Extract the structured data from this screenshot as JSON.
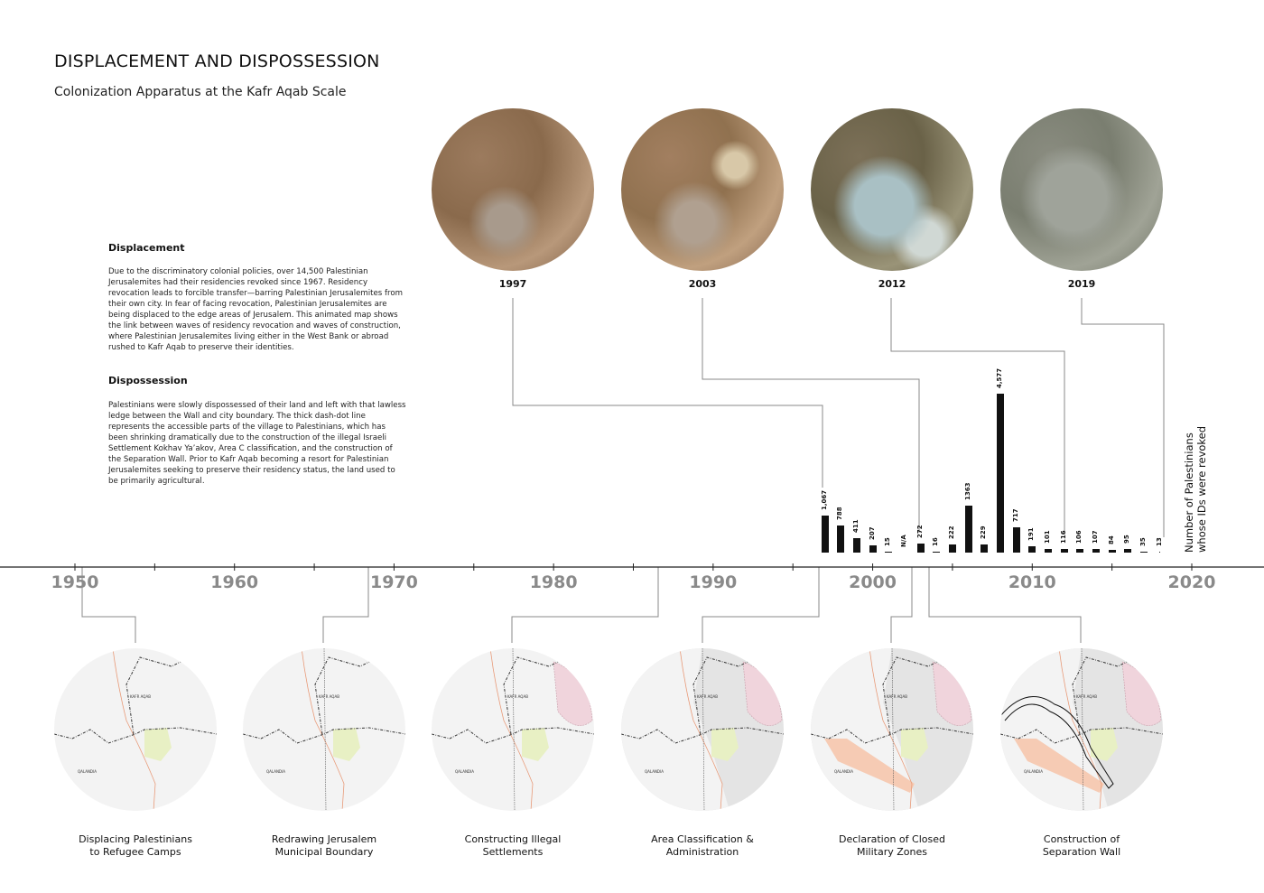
{
  "header": {
    "title": "DISPLACEMENT AND DISPOSSESSION",
    "subtitle": "Colonization Apparatus at the Kafr Aqab Scale"
  },
  "sections": [
    {
      "heading": "Displacement",
      "body": "Due to the discriminatory colonial policies, over 14,500 Palestinian Jerusalemites had their residencies revoked since 1967. Residency revocation leads to forcible transfer—barring Palestinian Jerusalemites from their own city. In fear of facing revocation, Palestinian Jerusalemites are being displaced to the edge areas of Jerusalem. This animated map shows the link between waves of residency revocation and waves of construction, where Palestinian Jerusalemites living either in the West Bank or abroad rushed to Kafr Aqab to preserve their identities."
    },
    {
      "heading": "Dispossession",
      "body": "Palestinians were slowly dispossessed of their land and left with that lawless ledge between the Wall and city boundary. The thick dash-dot line represents the accessible parts of the village to Palestinians, which has been shrinking dramatically due to the construction of the illegal Israeli Settlement Kokhav Ya’akov, Area C classification, and the construction of the Separation Wall. Prior to Kafr Aqab becoming a resort for Palestinian Jerusalemites seeking to preserve their residency status, the land used to be primarily agricultural."
    }
  ],
  "satellite_images": [
    {
      "year": "1997"
    },
    {
      "year": "2003"
    },
    {
      "year": "2012"
    },
    {
      "year": "2019"
    }
  ],
  "timeline": {
    "axis_years": [
      "1950",
      "1960",
      "1970",
      "1980",
      "1990",
      "2000",
      "2010",
      "2020"
    ]
  },
  "maps": {
    "place_labels": {
      "kafr_aqab": "KAFR AQAB",
      "qalandia": "QALANDIA"
    },
    "items": [
      {
        "caption_1": "Displacing Palestinians",
        "caption_2": "to Refugee Camps"
      },
      {
        "caption_1": "Redrawing Jerusalem",
        "caption_2": "Municipal Boundary"
      },
      {
        "caption_1": "Constructing Illegal",
        "caption_2": "Settlements"
      },
      {
        "caption_1": "Area Classification &",
        "caption_2": "Administration"
      },
      {
        "caption_1": "Declaration of Closed",
        "caption_2": "Military Zones"
      },
      {
        "caption_1": "Construction of",
        "caption_2": "Separation Wall"
      }
    ]
  },
  "chart_data": {
    "type": "bar",
    "title": "",
    "ylabel_1": "Number of Palestinians",
    "ylabel_2": "whose IDs were revoked",
    "xlim": [
      1950,
      2020
    ],
    "x": [
      1997,
      1998,
      1999,
      2000,
      2001,
      2002,
      2003,
      2004,
      2005,
      2006,
      2007,
      2008,
      2009,
      2010,
      2011,
      2012,
      2013,
      2014,
      2015,
      2016,
      2017,
      2018
    ],
    "values": [
      1067,
      788,
      411,
      207,
      15,
      null,
      272,
      16,
      222,
      1363,
      229,
      4577,
      717,
      191,
      101,
      116,
      106,
      107,
      84,
      95,
      35,
      13
    ],
    "labels": [
      "1,067",
      "788",
      "411",
      "207",
      "15",
      "N/A",
      "272",
      "16",
      "222",
      "1363",
      "229",
      "4,577",
      "717",
      "191",
      "101",
      "116",
      "106",
      "107",
      "84",
      "95",
      "35",
      "13"
    ]
  },
  "colors": {
    "bar": "#111111",
    "axis_year": "#8a8a8a",
    "connector": "#888888",
    "settlement": "#f0d4dc",
    "agri": "#e8f0c4",
    "military": "#f6cbb4",
    "road": "#e89a78"
  }
}
